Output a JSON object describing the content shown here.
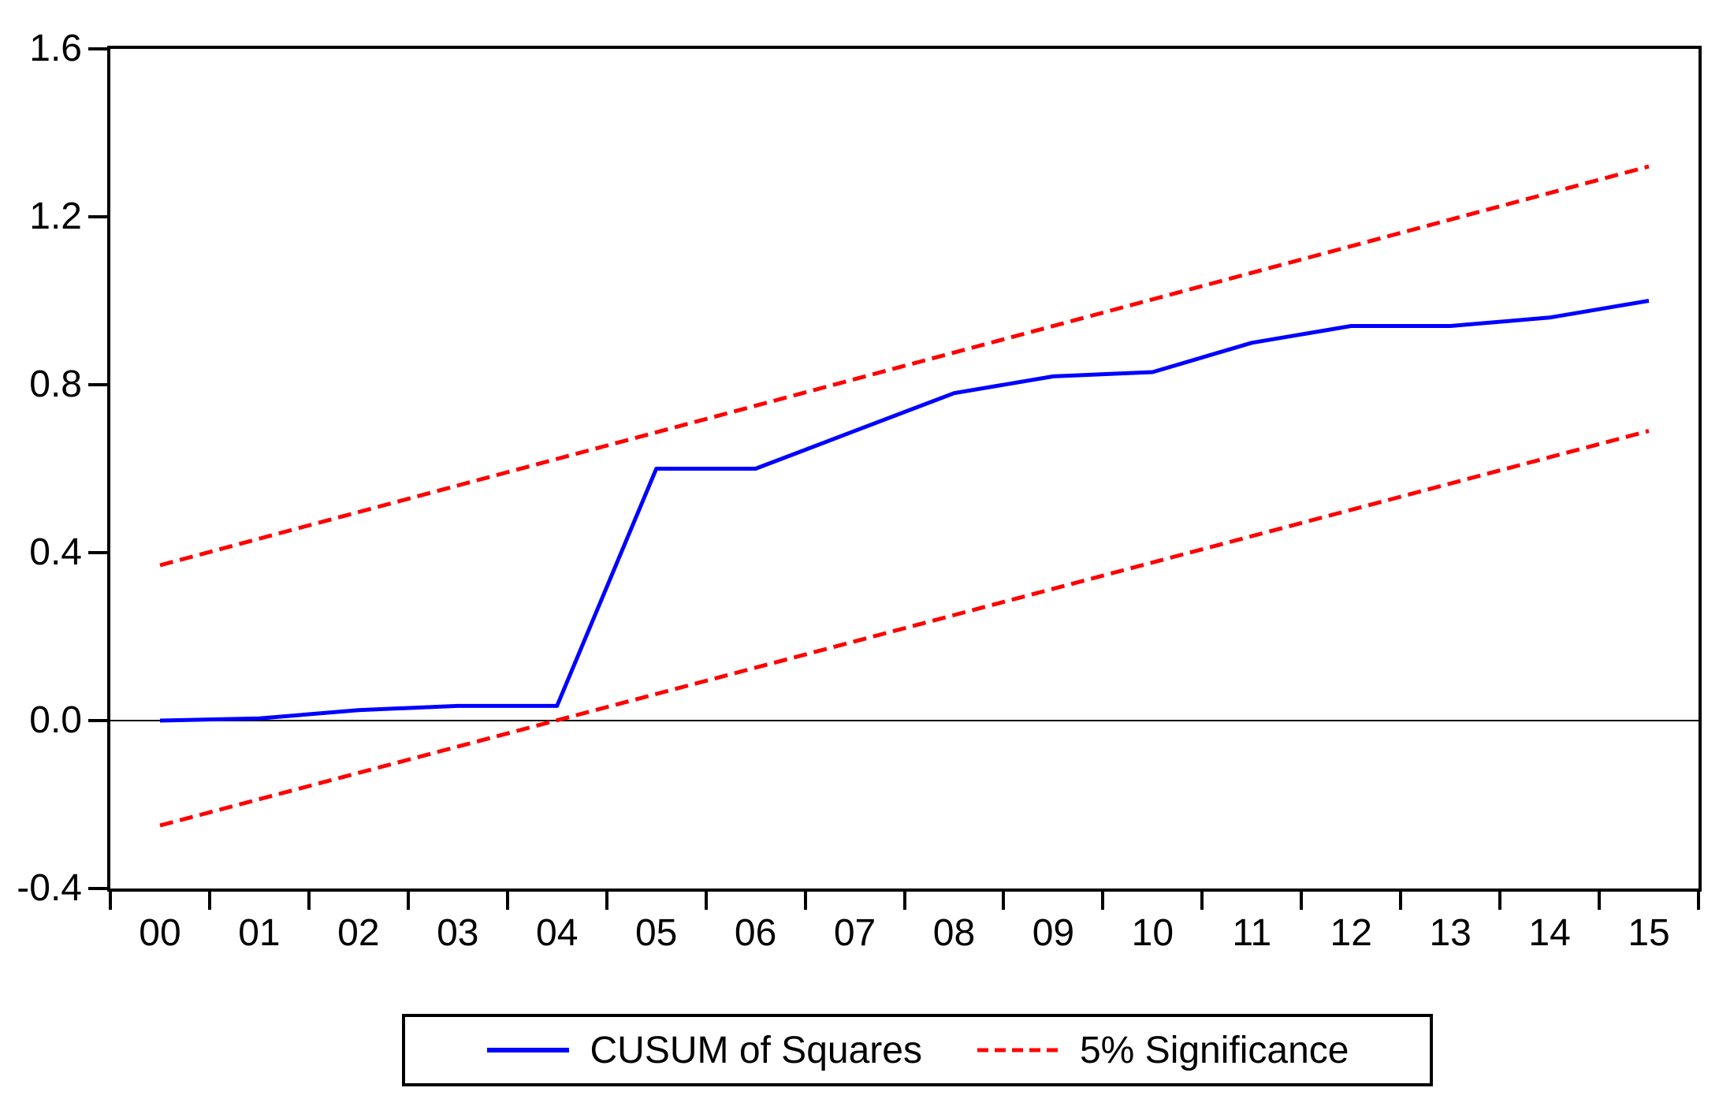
{
  "chart_data": {
    "type": "line",
    "title": "",
    "xlabel": "",
    "ylabel": "",
    "x_categories": [
      "00",
      "01",
      "02",
      "03",
      "04",
      "05",
      "06",
      "07",
      "08",
      "09",
      "10",
      "11",
      "12",
      "13",
      "14",
      "15"
    ],
    "ylim": [
      -0.4,
      1.6
    ],
    "yticks": [
      1.6,
      1.2,
      0.8,
      0.4,
      0.0,
      -0.4
    ],
    "ytick_labels": [
      "1.6",
      "1.2",
      "0.8",
      "0.4",
      "0.0",
      "-0.4"
    ],
    "grid": false,
    "zero_line": true,
    "legend_position": "bottom",
    "series": [
      {
        "name": "CUSUM of Squares",
        "color": "#0000ff",
        "line_style": "solid",
        "values": [
          0.0,
          0.005,
          0.025,
          0.035,
          0.035,
          0.6,
          0.6,
          0.69,
          0.78,
          0.82,
          0.83,
          0.9,
          0.94,
          0.94,
          0.96,
          1.0
        ]
      },
      {
        "name": "5% Significance (upper bound)",
        "color": "#ff0000",
        "line_style": "dashed",
        "x": [
          0,
          15
        ],
        "values": [
          0.37,
          1.32
        ]
      },
      {
        "name": "5% Significance (lower bound)",
        "color": "#ff0000",
        "line_style": "dashed",
        "x": [
          0,
          15
        ],
        "values": [
          -0.25,
          0.69
        ]
      }
    ]
  },
  "legend": {
    "items": [
      {
        "label": "CUSUM of Squares",
        "color": "#0000ff",
        "line_style": "solid"
      },
      {
        "label": "5% Significance",
        "color": "#ff0000",
        "line_style": "dashed"
      }
    ]
  },
  "colors": {
    "cusum_line": "#0000ff",
    "significance_line": "#ff0000",
    "axis": "#000000",
    "background": "#ffffff"
  }
}
